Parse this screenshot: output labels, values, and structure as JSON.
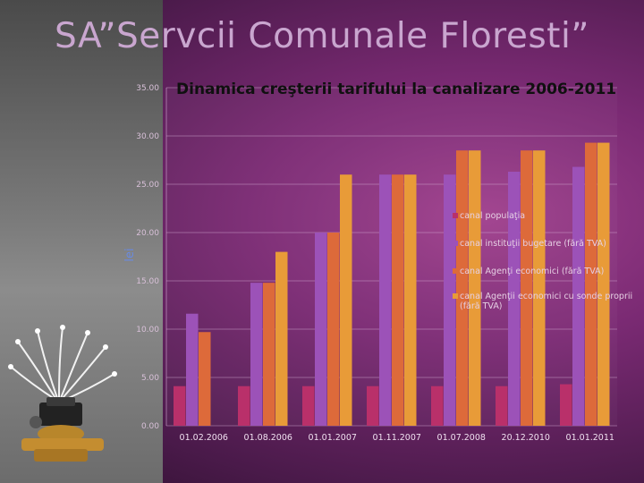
{
  "slide": {
    "title": "SA”Servcii Comunale Floresti”"
  },
  "chart_data": {
    "type": "bar",
    "title": "Dinamica creşterii tarifului la canalizare 2006-2011",
    "ylabel": "lei",
    "xlabel": "",
    "ylim": [
      0,
      35
    ],
    "ytick_labels": [
      "0.00",
      "5.00",
      "10.00",
      "15.00",
      "20.00",
      "25.00",
      "30.00",
      "35.00"
    ],
    "yticks": [
      0,
      5,
      10,
      15,
      20,
      25,
      30,
      35
    ],
    "grid": true,
    "legend_position": "right",
    "categories": [
      "01.02.2006",
      "01.08.2006",
      "01.01.2007",
      "01.11.2007",
      "01.07.2008",
      "20.12.2010",
      "01.01.2011"
    ],
    "series": [
      {
        "name": "canal populaţia",
        "color": "#b9306a",
        "values": [
          4.1,
          4.1,
          4.1,
          4.1,
          4.1,
          4.1,
          4.3
        ]
      },
      {
        "name": "canal instituţii bugetare (fără TVA)",
        "color": "#9c52b8",
        "values": [
          11.6,
          14.8,
          20.0,
          26.0,
          26.0,
          26.3,
          26.8
        ]
      },
      {
        "name": "canal Agenţi economici (fără TVA)",
        "color": "#dd6a3a",
        "values": [
          9.7,
          14.8,
          20.0,
          26.0,
          28.5,
          28.5,
          29.3
        ]
      },
      {
        "name": "canal Agenţii economici cu sonde proprii (fără TVA)",
        "color": "#e89b38",
        "values": [
          null,
          18.0,
          26.0,
          26.0,
          28.5,
          28.5,
          29.3
        ]
      }
    ]
  }
}
